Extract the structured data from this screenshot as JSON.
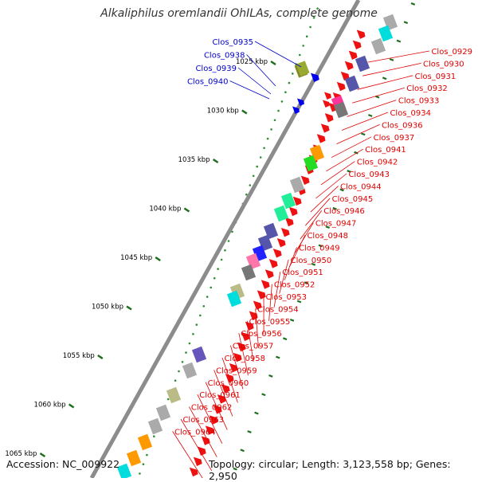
{
  "title": "Alkaliphilus oremlandii OhILAs, complete genome",
  "footer": {
    "accession": "Accession: NC_009922",
    "topology": "Topology: circular; Length: 3,123,558 bp; Genes: 2,950"
  },
  "colors": {
    "backbone": "#8c8c8c",
    "red_label": "#e00000",
    "blue_label": "#0000cc",
    "scale_dot": "#2f8f2f",
    "tick_mark": "#1d6e1d"
  },
  "scale_labels": [
    "1025 kbp",
    "1030 kbp",
    "1035 kbp",
    "1040 kbp",
    "1045 kbp",
    "1050 kbp",
    "1055 kbp",
    "1060 kbp",
    "1065 kbp"
  ],
  "blue_labels": [
    "Clos_0935",
    "Clos_0938",
    "Clos_0939",
    "Clos_0940"
  ],
  "red_labels": [
    "Clos_0929",
    "Clos_0930",
    "Clos_0931",
    "Clos_0932",
    "Clos_0933",
    "Clos_0934",
    "Clos_0936",
    "Clos_0937",
    "Clos_0941",
    "Clos_0942",
    "Clos_0943",
    "Clos_0944",
    "Clos_0945",
    "Clos_0946",
    "Clos_0947",
    "Clos_0948",
    "Clos_0949",
    "Clos_0950",
    "Clos_0951",
    "Clos_0952",
    "Clos_0953",
    "Clos_0954",
    "Clos_0955",
    "Clos_0956",
    "Clos_0957",
    "Clos_0958",
    "Clos_0959",
    "Clos_0960",
    "Clos_0961",
    "Clos_0962",
    "Clos_0963",
    "Clos_0964"
  ]
}
